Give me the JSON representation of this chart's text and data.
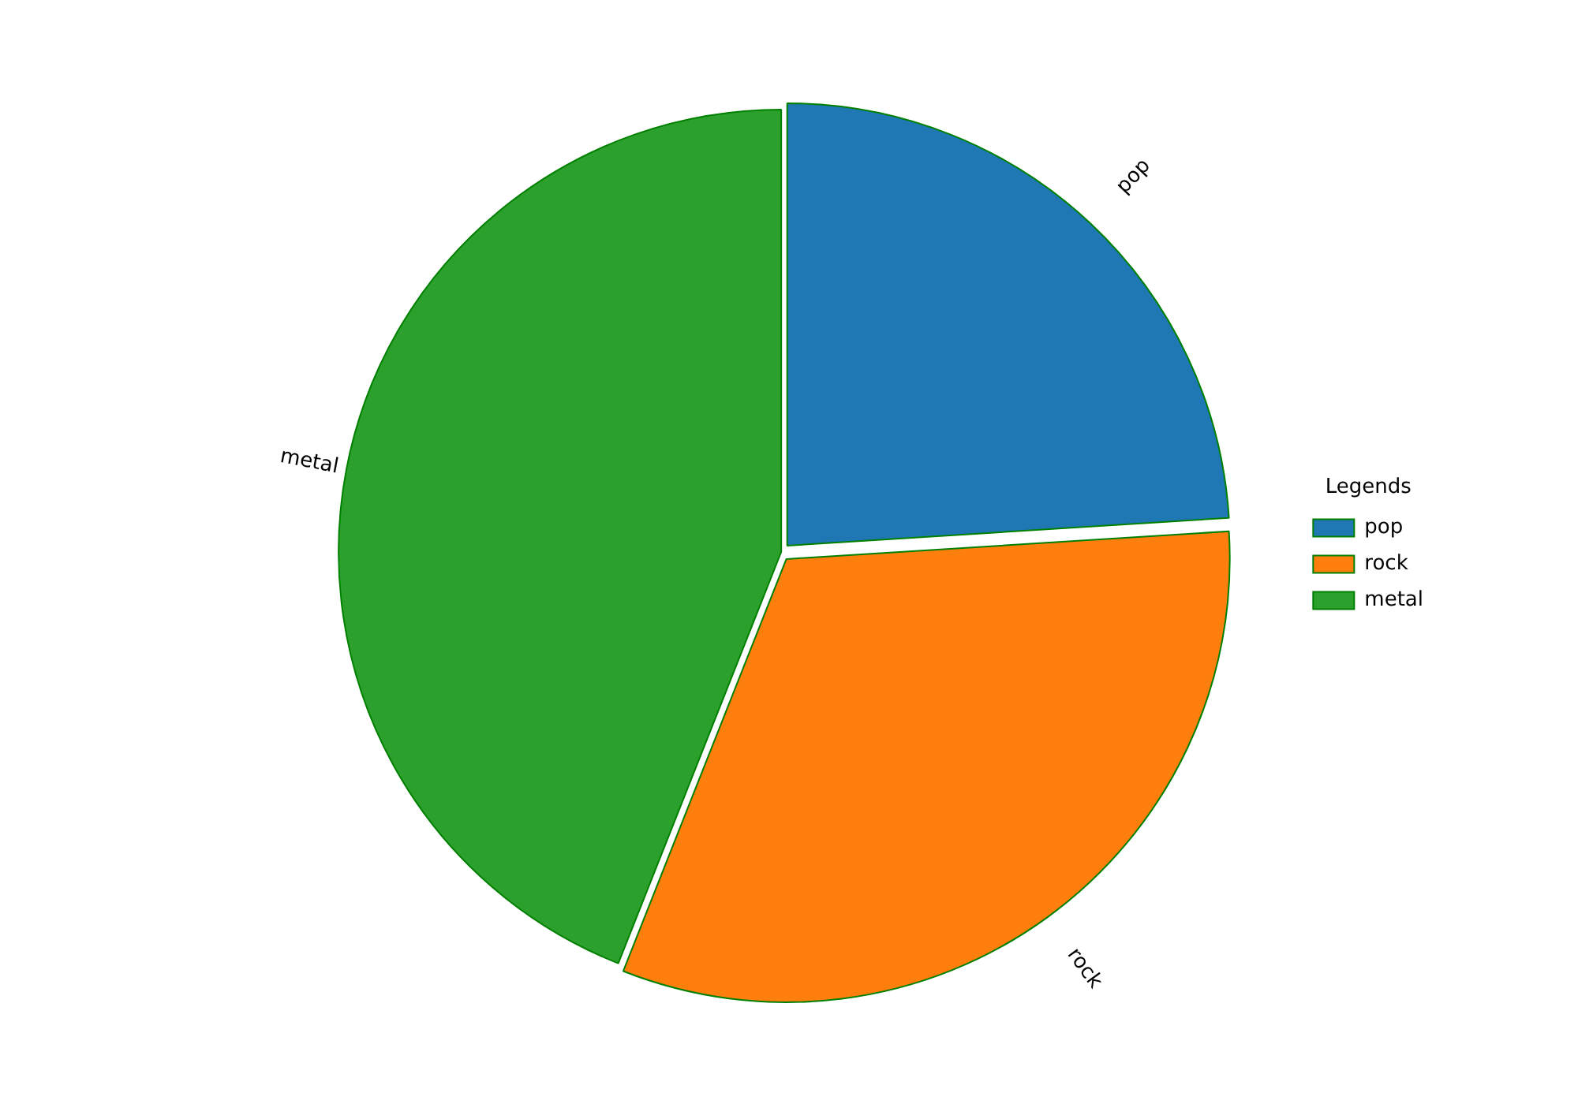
{
  "chart_data": {
    "type": "pie",
    "categories": [
      "pop",
      "rock",
      "metal"
    ],
    "values": [
      24,
      32,
      44
    ],
    "colors": [
      "#1f77b4",
      "#ff7f0e",
      "#2ca02c"
    ],
    "legend": "right",
    "legend_title": "Legends"
  }
}
